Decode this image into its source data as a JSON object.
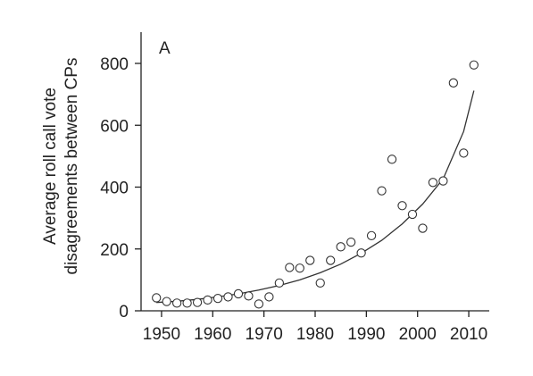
{
  "chart_data": {
    "type": "scatter",
    "panel_label": "A",
    "ylabel_line1": "Average roll call vote",
    "ylabel_line2": "disagreements between CPs",
    "xlabel": "",
    "xlim": [
      1946,
      2014
    ],
    "ylim": [
      0,
      900
    ],
    "xticks": [
      1950,
      1960,
      1970,
      1980,
      1990,
      2000,
      2010
    ],
    "yticks": [
      0,
      200,
      400,
      600,
      800
    ],
    "grid": false,
    "series": [
      {
        "x": [
          1949,
          1951,
          1953,
          1955,
          1957,
          1959,
          1961,
          1963,
          1965,
          1967,
          1969,
          1971,
          1973,
          1975,
          1977,
          1979,
          1981,
          1983,
          1985,
          1987,
          1989,
          1991,
          1993,
          1995,
          1997,
          1999,
          2001,
          2003,
          2005,
          2007,
          2009,
          2011
        ],
        "y": [
          42,
          30,
          25,
          25,
          27,
          35,
          40,
          45,
          55,
          48,
          22,
          45,
          90,
          140,
          138,
          163,
          90,
          163,
          207,
          222,
          187,
          243,
          388,
          490,
          340,
          312,
          267,
          415,
          420,
          737,
          510,
          795
        ]
      }
    ],
    "fit": {
      "type": "exponential",
      "x": [
        1949,
        1953,
        1957,
        1961,
        1965,
        1969,
        1973,
        1977,
        1981,
        1985,
        1989,
        1993,
        1997,
        2001,
        2005,
        2009,
        2011
      ],
      "y": [
        27,
        31,
        37,
        45,
        55,
        67,
        82,
        100,
        123,
        151,
        186,
        228,
        281,
        345,
        427,
        580,
        712
      ]
    }
  }
}
